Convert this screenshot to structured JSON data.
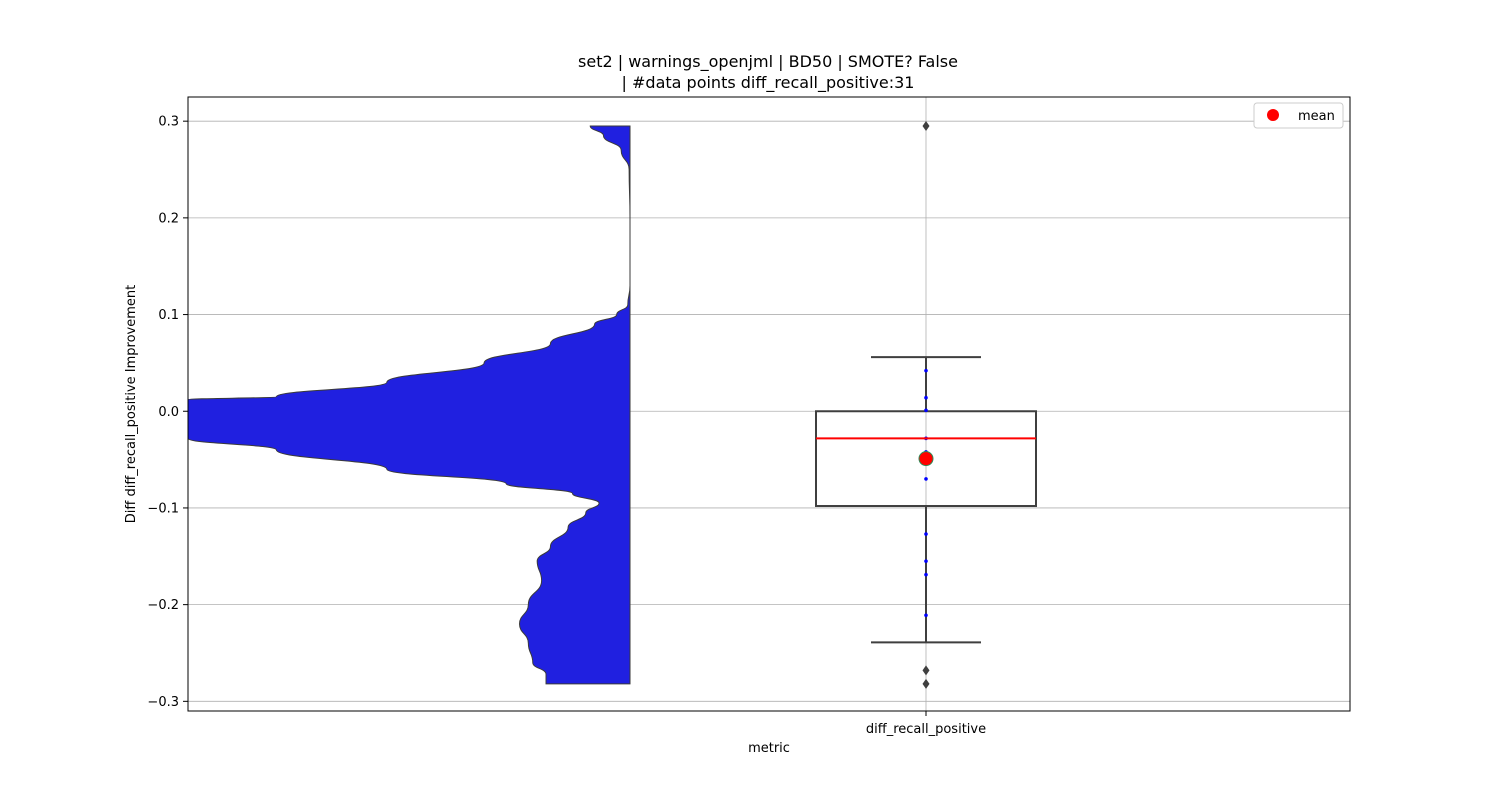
{
  "chart_data": {
    "type": "violin+box",
    "title_line1": "set2 | warnings_openjml | BD50 | SMOTE? False",
    "title_line2": "| #data points diff_recall_positive:31",
    "xlabel": "metric",
    "ylabel": "Diff diff_recall_positive Improvement",
    "categories": [
      "diff_recall_positive"
    ],
    "ylim": [
      -0.31,
      0.325
    ],
    "yticks": [
      -0.3,
      -0.2,
      -0.1,
      0.0,
      0.1,
      0.2,
      0.3
    ],
    "ytick_labels": [
      "−0.3",
      "−0.2",
      "−0.1",
      "0.0",
      "0.1",
      "0.2",
      "0.3"
    ],
    "grid": true,
    "legend": {
      "placement": "upper-right",
      "entries": [
        {
          "label": "mean",
          "color": "#ff0000"
        }
      ]
    },
    "violin": {
      "color": "#2020e0",
      "range": [
        -0.282,
        0.295
      ],
      "density_profile": [
        [
          0.295,
          0.09
        ],
        [
          0.285,
          0.06
        ],
        [
          0.27,
          0.02
        ],
        [
          0.25,
          0.002
        ],
        [
          0.2,
          0.0
        ],
        [
          0.13,
          0.0
        ],
        [
          0.11,
          0.005
        ],
        [
          0.1,
          0.03
        ],
        [
          0.09,
          0.08
        ],
        [
          0.07,
          0.18
        ],
        [
          0.05,
          0.33
        ],
        [
          0.03,
          0.55
        ],
        [
          0.015,
          0.8
        ],
        [
          0.012,
          1.0
        ],
        [
          -0.028,
          1.0
        ],
        [
          -0.04,
          0.8
        ],
        [
          -0.06,
          0.55
        ],
        [
          -0.075,
          0.28
        ],
        [
          -0.085,
          0.13
        ],
        [
          -0.095,
          0.07
        ],
        [
          -0.105,
          0.1
        ],
        [
          -0.12,
          0.14
        ],
        [
          -0.14,
          0.18
        ],
        [
          -0.155,
          0.21
        ],
        [
          -0.175,
          0.2
        ],
        [
          -0.2,
          0.23
        ],
        [
          -0.22,
          0.25
        ],
        [
          -0.24,
          0.23
        ],
        [
          -0.26,
          0.22
        ],
        [
          -0.272,
          0.19
        ],
        [
          -0.282,
          0.19
        ]
      ]
    },
    "box": {
      "q1": -0.098,
      "median": -0.028,
      "q3": 0.0,
      "whisker_low": -0.239,
      "whisker_high": 0.056,
      "mean": -0.049,
      "median_color": "#ff0000",
      "mean_color": "#ff0000",
      "outliers": [
        0.295,
        -0.268,
        -0.282
      ]
    },
    "points": [
      0.042,
      0.014,
      0.001,
      -0.028,
      -0.042,
      -0.07,
      -0.127,
      -0.155,
      -0.169,
      -0.211
    ],
    "points_color": "#0000ff"
  }
}
